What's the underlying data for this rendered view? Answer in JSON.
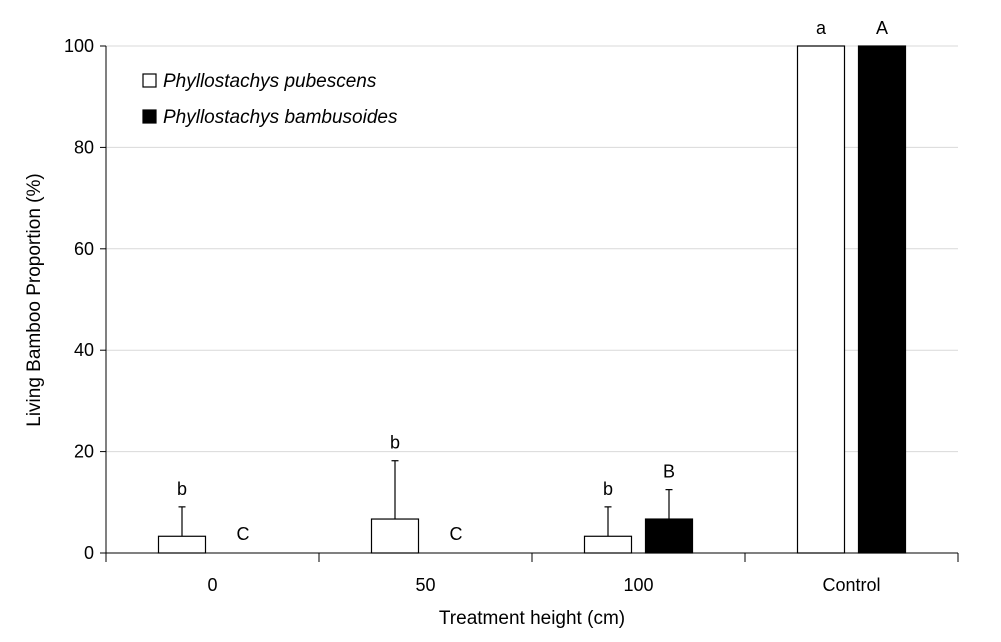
{
  "chart_data": {
    "type": "bar",
    "xlabel": "Treatment height (cm)",
    "ylabel": "Living Bamboo Proportion (%)",
    "ylim": [
      0,
      100
    ],
    "yticks": [
      0,
      20,
      40,
      60,
      80,
      100
    ],
    "grid": true,
    "legend_position": "top-left",
    "categories": [
      "0",
      "50",
      "100",
      "Control"
    ],
    "series": [
      {
        "name": "Phyllostachys pubescens",
        "color": "#ffffff",
        "values": [
          3.3,
          6.7,
          3.3,
          100
        ],
        "errors": [
          5.8,
          11.5,
          5.8,
          0
        ],
        "letters": [
          "b",
          "b",
          "b",
          "a"
        ]
      },
      {
        "name": "Phyllostachys bambusoides",
        "color": "#000000",
        "values": [
          0,
          0,
          6.7,
          100
        ],
        "errors": [
          0,
          0,
          5.8,
          0
        ],
        "letters": [
          "C",
          "C",
          "B",
          "A"
        ]
      }
    ]
  }
}
